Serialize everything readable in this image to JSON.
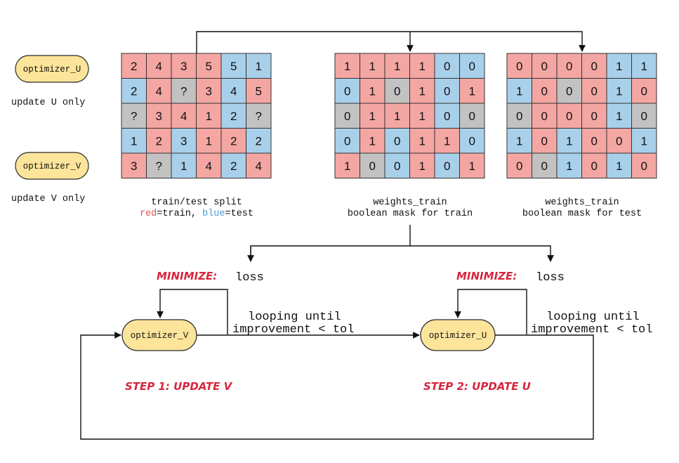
{
  "colors": {
    "train": "#f4a6a3",
    "test": "#a9d0ea",
    "missing": "#c2c2c2",
    "pill_fill": "#fce59a",
    "pill_stroke": "#2b2b2b",
    "accent_red": "#d7263d",
    "line": "#111111"
  },
  "legend": {
    "optimizer_u": "optimizer_U",
    "update_u": "update U only",
    "optimizer_v": "optimizer_V",
    "update_v": "update V only"
  },
  "grids": [
    {
      "id": "split",
      "caption1": "train/test split",
      "caption2_parts": [
        {
          "text": "red",
          "color": "red"
        },
        {
          "text": "=train, ",
          "color": "black"
        },
        {
          "text": "blue",
          "color": "blue"
        },
        {
          "text": "=test",
          "color": "black"
        }
      ],
      "values": [
        [
          "2",
          "4",
          "3",
          "5",
          "5",
          "1"
        ],
        [
          "2",
          "4",
          "?",
          "3",
          "4",
          "5"
        ],
        [
          "?",
          "3",
          "4",
          "1",
          "2",
          "?"
        ],
        [
          "1",
          "2",
          "3",
          "1",
          "2",
          "2"
        ],
        [
          "3",
          "?",
          "1",
          "4",
          "2",
          "4"
        ]
      ],
      "colors": [
        [
          "r",
          "r",
          "r",
          "r",
          "b",
          "b"
        ],
        [
          "b",
          "r",
          "g",
          "r",
          "b",
          "r"
        ],
        [
          "g",
          "r",
          "r",
          "r",
          "b",
          "g"
        ],
        [
          "b",
          "r",
          "b",
          "r",
          "r",
          "b"
        ],
        [
          "r",
          "g",
          "b",
          "r",
          "b",
          "r"
        ]
      ]
    },
    {
      "id": "train-mask",
      "caption1": "weights_train",
      "caption2": "boolean mask for train",
      "values": [
        [
          "1",
          "1",
          "1",
          "1",
          "0",
          "0"
        ],
        [
          "0",
          "1",
          "0",
          "1",
          "0",
          "1"
        ],
        [
          "0",
          "1",
          "1",
          "1",
          "0",
          "0"
        ],
        [
          "0",
          "1",
          "0",
          "1",
          "1",
          "0"
        ],
        [
          "1",
          "0",
          "0",
          "1",
          "0",
          "1"
        ]
      ],
      "colors": [
        [
          "r",
          "r",
          "r",
          "r",
          "b",
          "b"
        ],
        [
          "b",
          "r",
          "g",
          "r",
          "b",
          "r"
        ],
        [
          "g",
          "r",
          "r",
          "r",
          "b",
          "g"
        ],
        [
          "b",
          "r",
          "b",
          "r",
          "r",
          "b"
        ],
        [
          "r",
          "g",
          "b",
          "r",
          "b",
          "r"
        ]
      ]
    },
    {
      "id": "test-mask",
      "caption1": "weights_train",
      "caption2": "boolean mask for test",
      "values": [
        [
          "0",
          "0",
          "0",
          "0",
          "1",
          "1"
        ],
        [
          "1",
          "0",
          "0",
          "0",
          "1",
          "0"
        ],
        [
          "0",
          "0",
          "0",
          "0",
          "1",
          "0"
        ],
        [
          "1",
          "0",
          "1",
          "0",
          "0",
          "1"
        ],
        [
          "0",
          "0",
          "1",
          "0",
          "1",
          "0"
        ]
      ],
      "colors": [
        [
          "r",
          "r",
          "r",
          "r",
          "b",
          "b"
        ],
        [
          "b",
          "r",
          "g",
          "r",
          "b",
          "r"
        ],
        [
          "g",
          "r",
          "r",
          "r",
          "b",
          "g"
        ],
        [
          "b",
          "r",
          "b",
          "r",
          "r",
          "b"
        ],
        [
          "r",
          "g",
          "b",
          "r",
          "b",
          "r"
        ]
      ]
    }
  ],
  "loop": {
    "minimize_label": "MINIMIZE:",
    "loss_label": "loss",
    "until_line1": "looping until",
    "until_line2": "improvement < tol",
    "opt_step1": "optimizer_V",
    "opt_step2": "optimizer_U",
    "step1": "STEP 1: UPDATE V",
    "step2": "STEP 2: UPDATE U"
  }
}
